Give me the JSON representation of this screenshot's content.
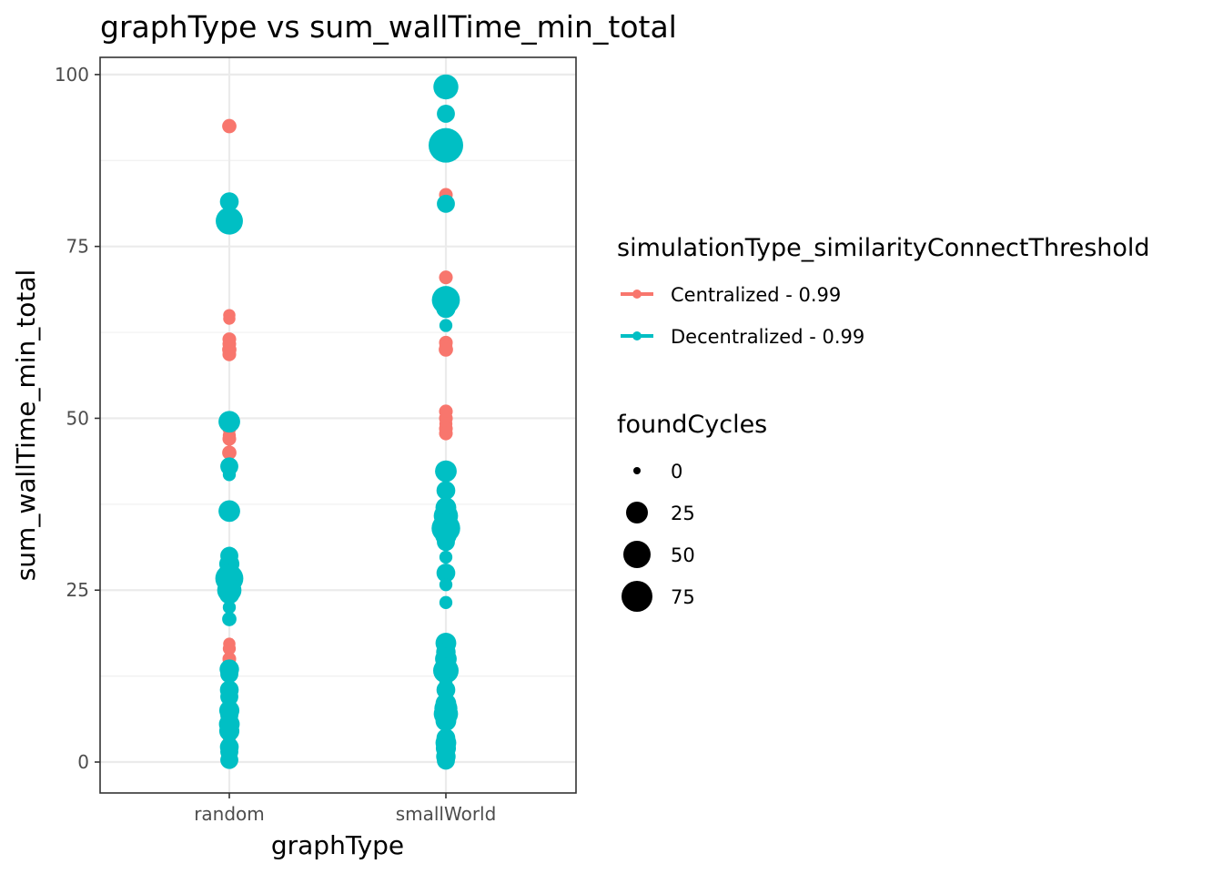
{
  "chart_data": {
    "type": "scatter",
    "title": "graphType  vs  sum_wallTime_min_total",
    "xlabel": "graphType",
    "ylabel": "sum_wallTime_min_total",
    "categories": [
      "random",
      "smallWorld"
    ],
    "ylim": [
      -4.5,
      102.5
    ],
    "y_ticks": [
      "0",
      "25",
      "50",
      "75",
      "100"
    ],
    "grid": true,
    "legend_position": "right",
    "color_legend": {
      "title": "simulationType_similarityConnectThreshold",
      "entries": [
        {
          "label": "Centralized - 0.99",
          "color": "#f8766d"
        },
        {
          "label": "Decentralized - 0.99",
          "color": "#00bfc4"
        }
      ]
    },
    "size_legend": {
      "title": "foundCycles",
      "entries": [
        {
          "label": "0",
          "value": 0
        },
        {
          "label": "25",
          "value": 25
        },
        {
          "label": "50",
          "value": 50
        },
        {
          "label": "75",
          "value": 75
        }
      ]
    },
    "series": [
      {
        "name": "Centralized - 0.99",
        "color": "#f8766d",
        "points": [
          {
            "x": "random",
            "y": 92.5,
            "size": 6
          },
          {
            "x": "random",
            "y": 65.0,
            "size": 3
          },
          {
            "x": "random",
            "y": 64.5,
            "size": 3
          },
          {
            "x": "random",
            "y": 61.5,
            "size": 5
          },
          {
            "x": "random",
            "y": 60.8,
            "size": 5
          },
          {
            "x": "random",
            "y": 60.0,
            "size": 6
          },
          {
            "x": "random",
            "y": 59.3,
            "size": 5
          },
          {
            "x": "random",
            "y": 49.5,
            "size": 4
          },
          {
            "x": "random",
            "y": 48.5,
            "size": 5
          },
          {
            "x": "random",
            "y": 47.5,
            "size": 4
          },
          {
            "x": "random",
            "y": 47.0,
            "size": 5
          },
          {
            "x": "random",
            "y": 45.0,
            "size": 6
          },
          {
            "x": "random",
            "y": 17.2,
            "size": 3
          },
          {
            "x": "random",
            "y": 16.5,
            "size": 4
          },
          {
            "x": "random",
            "y": 15.0,
            "size": 5
          },
          {
            "x": "random",
            "y": 14.5,
            "size": 4
          },
          {
            "x": "random",
            "y": 13.8,
            "size": 5
          },
          {
            "x": "random",
            "y": 12.5,
            "size": 4
          },
          {
            "x": "random",
            "y": 11.0,
            "size": 3
          },
          {
            "x": "random",
            "y": 8.5,
            "size": 4
          },
          {
            "x": "random",
            "y": 5.0,
            "size": 3
          },
          {
            "x": "random",
            "y": 3.5,
            "size": 4
          },
          {
            "x": "random",
            "y": 2.5,
            "size": 5
          },
          {
            "x": "random",
            "y": 1.0,
            "size": 4
          },
          {
            "x": "smallWorld",
            "y": 82.5,
            "size": 5
          },
          {
            "x": "smallWorld",
            "y": 70.5,
            "size": 5
          },
          {
            "x": "smallWorld",
            "y": 61.0,
            "size": 5
          },
          {
            "x": "smallWorld",
            "y": 60.5,
            "size": 4
          },
          {
            "x": "smallWorld",
            "y": 60.0,
            "size": 6
          },
          {
            "x": "smallWorld",
            "y": 51.0,
            "size": 5
          },
          {
            "x": "smallWorld",
            "y": 50.0,
            "size": 5
          },
          {
            "x": "smallWorld",
            "y": 49.2,
            "size": 4
          },
          {
            "x": "smallWorld",
            "y": 48.5,
            "size": 5
          },
          {
            "x": "smallWorld",
            "y": 47.8,
            "size": 5
          },
          {
            "x": "smallWorld",
            "y": 16.8,
            "size": 4
          },
          {
            "x": "smallWorld",
            "y": 12.0,
            "size": 5
          },
          {
            "x": "smallWorld",
            "y": 3.8,
            "size": 3
          },
          {
            "x": "smallWorld",
            "y": 1.3,
            "size": 4
          }
        ]
      },
      {
        "name": "Decentralized - 0.99",
        "color": "#00bfc4",
        "points": [
          {
            "x": "random",
            "y": 81.5,
            "size": 16
          },
          {
            "x": "random",
            "y": 78.7,
            "size": 48
          },
          {
            "x": "random",
            "y": 49.5,
            "size": 25
          },
          {
            "x": "random",
            "y": 43.0,
            "size": 14
          },
          {
            "x": "random",
            "y": 41.8,
            "size": 4
          },
          {
            "x": "random",
            "y": 36.5,
            "size": 25
          },
          {
            "x": "random",
            "y": 30.0,
            "size": 14
          },
          {
            "x": "random",
            "y": 28.8,
            "size": 20
          },
          {
            "x": "random",
            "y": 27.5,
            "size": 16
          },
          {
            "x": "random",
            "y": 26.7,
            "size": 52
          },
          {
            "x": "random",
            "y": 25.0,
            "size": 35
          },
          {
            "x": "random",
            "y": 24.5,
            "size": 22
          },
          {
            "x": "random",
            "y": 22.5,
            "size": 4
          },
          {
            "x": "random",
            "y": 20.8,
            "size": 6
          },
          {
            "x": "random",
            "y": 13.5,
            "size": 18
          },
          {
            "x": "random",
            "y": 12.8,
            "size": 14
          },
          {
            "x": "random",
            "y": 10.5,
            "size": 16
          },
          {
            "x": "random",
            "y": 9.5,
            "size": 14
          },
          {
            "x": "random",
            "y": 7.5,
            "size": 20
          },
          {
            "x": "random",
            "y": 6.8,
            "size": 14
          },
          {
            "x": "random",
            "y": 5.5,
            "size": 22
          },
          {
            "x": "random",
            "y": 4.5,
            "size": 20
          },
          {
            "x": "random",
            "y": 2.2,
            "size": 16
          },
          {
            "x": "random",
            "y": 1.5,
            "size": 14
          },
          {
            "x": "random",
            "y": 0.3,
            "size": 14
          },
          {
            "x": "smallWorld",
            "y": 98.2,
            "size": 38
          },
          {
            "x": "smallWorld",
            "y": 94.3,
            "size": 14
          },
          {
            "x": "smallWorld",
            "y": 89.7,
            "size": 90
          },
          {
            "x": "smallWorld",
            "y": 81.2,
            "size": 14
          },
          {
            "x": "smallWorld",
            "y": 67.2,
            "size": 52
          },
          {
            "x": "smallWorld",
            "y": 66.0,
            "size": 18
          },
          {
            "x": "smallWorld",
            "y": 63.5,
            "size": 4
          },
          {
            "x": "smallWorld",
            "y": 42.3,
            "size": 25
          },
          {
            "x": "smallWorld",
            "y": 39.5,
            "size": 16
          },
          {
            "x": "smallWorld",
            "y": 37.0,
            "size": 22
          },
          {
            "x": "smallWorld",
            "y": 35.8,
            "size": 35
          },
          {
            "x": "smallWorld",
            "y": 35.0,
            "size": 30
          },
          {
            "x": "smallWorld",
            "y": 34.0,
            "size": 55
          },
          {
            "x": "smallWorld",
            "y": 33.0,
            "size": 25
          },
          {
            "x": "smallWorld",
            "y": 32.0,
            "size": 14
          },
          {
            "x": "smallWorld",
            "y": 29.8,
            "size": 4
          },
          {
            "x": "smallWorld",
            "y": 27.5,
            "size": 16
          },
          {
            "x": "smallWorld",
            "y": 25.8,
            "size": 4
          },
          {
            "x": "smallWorld",
            "y": 23.2,
            "size": 4
          },
          {
            "x": "smallWorld",
            "y": 17.3,
            "size": 22
          },
          {
            "x": "smallWorld",
            "y": 16.0,
            "size": 18
          },
          {
            "x": "smallWorld",
            "y": 15.0,
            "size": 25
          },
          {
            "x": "smallWorld",
            "y": 14.0,
            "size": 20
          },
          {
            "x": "smallWorld",
            "y": 13.3,
            "size": 40
          },
          {
            "x": "smallWorld",
            "y": 11.5,
            "size": 4
          },
          {
            "x": "smallWorld",
            "y": 10.5,
            "size": 16
          },
          {
            "x": "smallWorld",
            "y": 8.5,
            "size": 22
          },
          {
            "x": "smallWorld",
            "y": 7.8,
            "size": 30
          },
          {
            "x": "smallWorld",
            "y": 7.0,
            "size": 35
          },
          {
            "x": "smallWorld",
            "y": 6.0,
            "size": 22
          },
          {
            "x": "smallWorld",
            "y": 3.5,
            "size": 16
          },
          {
            "x": "smallWorld",
            "y": 2.8,
            "size": 22
          },
          {
            "x": "smallWorld",
            "y": 2.0,
            "size": 20
          },
          {
            "x": "smallWorld",
            "y": 0.8,
            "size": 18
          },
          {
            "x": "smallWorld",
            "y": 0.2,
            "size": 14
          }
        ]
      }
    ]
  }
}
